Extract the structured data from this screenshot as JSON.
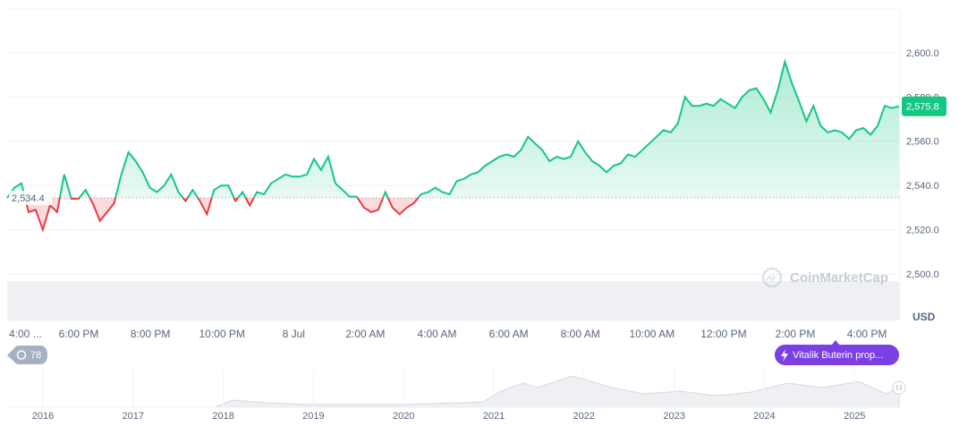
{
  "chart_data": {
    "type": "line",
    "values": [
      2534.4,
      2539,
      2541,
      2528,
      2529,
      2520,
      2531,
      2528,
      2545,
      2534,
      2534,
      2538,
      2532,
      2524,
      2528,
      2532,
      2545,
      2555,
      2551,
      2546,
      2539,
      2537,
      2540,
      2545,
      2537,
      2533,
      2538,
      2533,
      2527,
      2538,
      2540,
      2540,
      2533,
      2537,
      2531,
      2537,
      2536,
      2541,
      2543,
      2545,
      2544,
      2544,
      2545,
      2552,
      2547,
      2553,
      2541,
      2538,
      2535,
      2535,
      2530,
      2528,
      2529,
      2537,
      2530,
      2527,
      2530,
      2532,
      2536,
      2537,
      2539,
      2537,
      2536,
      2542,
      2543,
      2545,
      2546,
      2549,
      2551,
      2553,
      2554,
      2553,
      2556,
      2562,
      2559,
      2556,
      2551,
      2553,
      2552,
      2553,
      2560,
      2555,
      2551,
      2549,
      2546,
      2549,
      2550,
      2554,
      2553,
      2556,
      2559,
      2562,
      2565,
      2564,
      2568,
      2580,
      2576,
      2576,
      2577,
      2576,
      2579,
      2577,
      2575,
      2580,
      2583,
      2584,
      2579,
      2573,
      2583,
      2596,
      2586,
      2578,
      2569,
      2576,
      2567,
      2564,
      2565,
      2564,
      2561,
      2565,
      2566,
      2563,
      2567,
      2576,
      2575,
      2575.8
    ],
    "up_color": "#16c784",
    "down_color": "#ea3943",
    "baseline": {
      "value": 2534.4,
      "label": "2,534.4"
    },
    "last_price": {
      "value": 2575.8,
      "label": "2,575.8"
    },
    "ylim": [
      2480,
      2620
    ],
    "yticks": [
      {
        "value": 2500,
        "label": "2,500.0"
      },
      {
        "value": 2520,
        "label": "2,520.0"
      },
      {
        "value": 2540,
        "label": "2,540.0"
      },
      {
        "value": 2560,
        "label": "2,560.0"
      },
      {
        "value": 2580,
        "label": "2,580.0"
      },
      {
        "value": 2600,
        "label": "2,600.0"
      }
    ],
    "grid": true,
    "x_labels": [
      "4:00 ...",
      "6:00 PM",
      "8:00 PM",
      "10:00 PM",
      "8 Jul",
      "2:00 AM",
      "4:00 AM",
      "6:00 AM",
      "8:00 AM",
      "10:00 AM",
      "12:00 PM",
      "2:00 PM",
      "4:00 PM"
    ],
    "currency": "USD",
    "watermark": "CoinMarketCap",
    "event_count": "78",
    "event_tag": "Vitalik Buterin prop...",
    "navigator_years": [
      "2016",
      "2017",
      "2018",
      "2019",
      "2020",
      "2021",
      "2022",
      "2023",
      "2024",
      "2025"
    ]
  }
}
